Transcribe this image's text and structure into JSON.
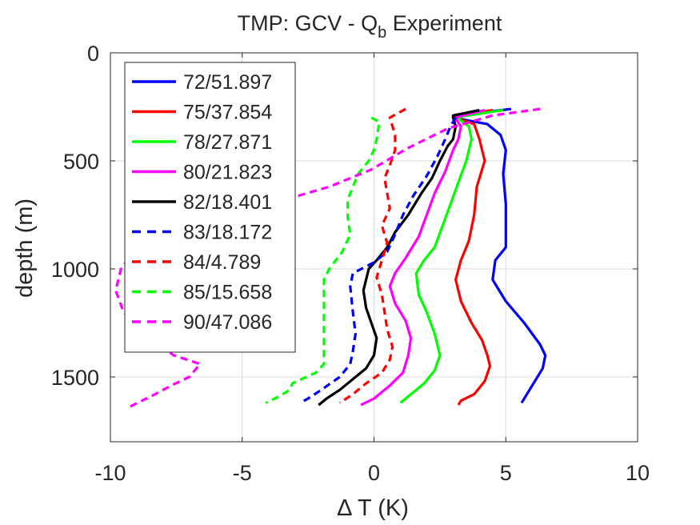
{
  "chart_data": {
    "type": "line",
    "title": "TMP: GCV - Q",
    "title_subscript": "b",
    "title_suffix": " Experiment",
    "xlabel": "Δ T (K)",
    "ylabel": "depth (m)",
    "xlim": [
      -10,
      10
    ],
    "ylim": [
      0,
      1800
    ],
    "y_reversed": true,
    "grid": true,
    "legend_position": "top-left",
    "xticks": [
      -10,
      -5,
      0,
      5,
      10
    ],
    "xtick_labels": [
      "-10",
      "-5",
      "0",
      "5",
      "10"
    ],
    "yticks": [
      0,
      500,
      1000,
      1500
    ],
    "ytick_labels": [
      "0",
      "500",
      "1000",
      "1500"
    ],
    "series": [
      {
        "name": "72/51.897",
        "color": "#0000ff",
        "style": "solid",
        "points": [
          [
            5.2,
            260
          ],
          [
            3.1,
            290
          ],
          [
            3.0,
            300
          ],
          [
            4.3,
            330
          ],
          [
            4.8,
            380
          ],
          [
            5.0,
            450
          ],
          [
            4.9,
            560
          ],
          [
            5.0,
            700
          ],
          [
            5.0,
            800
          ],
          [
            5.0,
            900
          ],
          [
            4.6,
            960
          ],
          [
            4.5,
            1050
          ],
          [
            5.0,
            1150
          ],
          [
            5.7,
            1250
          ],
          [
            6.3,
            1350
          ],
          [
            6.5,
            1400
          ],
          [
            6.4,
            1460
          ],
          [
            6.1,
            1520
          ],
          [
            5.8,
            1580
          ],
          [
            5.6,
            1620
          ]
        ]
      },
      {
        "name": "75/37.854",
        "color": "#ff0000",
        "style": "solid",
        "points": [
          [
            4.5,
            265
          ],
          [
            3.2,
            290
          ],
          [
            3.1,
            300
          ],
          [
            3.8,
            330
          ],
          [
            4.0,
            400
          ],
          [
            4.2,
            500
          ],
          [
            3.9,
            620
          ],
          [
            3.8,
            750
          ],
          [
            3.6,
            870
          ],
          [
            3.3,
            960
          ],
          [
            3.1,
            1050
          ],
          [
            3.3,
            1150
          ],
          [
            3.7,
            1250
          ],
          [
            4.1,
            1330
          ],
          [
            4.3,
            1400
          ],
          [
            4.4,
            1450
          ],
          [
            4.2,
            1520
          ],
          [
            3.8,
            1580
          ],
          [
            3.3,
            1610
          ],
          [
            3.2,
            1630
          ]
        ]
      },
      {
        "name": "78/27.871",
        "color": "#00ff00",
        "style": "solid",
        "points": [
          [
            4.9,
            265
          ],
          [
            3.3,
            295
          ],
          [
            3.2,
            305
          ],
          [
            3.6,
            340
          ],
          [
            3.7,
            400
          ],
          [
            3.5,
            500
          ],
          [
            3.2,
            600
          ],
          [
            2.9,
            700
          ],
          [
            2.6,
            800
          ],
          [
            2.3,
            900
          ],
          [
            1.9,
            960
          ],
          [
            1.6,
            1020
          ],
          [
            1.7,
            1120
          ],
          [
            2.0,
            1200
          ],
          [
            2.3,
            1300
          ],
          [
            2.5,
            1400
          ],
          [
            2.3,
            1470
          ],
          [
            1.9,
            1530
          ],
          [
            1.4,
            1580
          ],
          [
            1.0,
            1620
          ]
        ]
      },
      {
        "name": "80/21.823",
        "color": "#ff00ff",
        "style": "solid",
        "points": [
          [
            4.2,
            265
          ],
          [
            3.2,
            295
          ],
          [
            3.1,
            305
          ],
          [
            3.3,
            340
          ],
          [
            3.2,
            400
          ],
          [
            3.0,
            450
          ],
          [
            2.7,
            550
          ],
          [
            2.3,
            650
          ],
          [
            2.0,
            750
          ],
          [
            1.7,
            850
          ],
          [
            1.2,
            950
          ],
          [
            0.8,
            1020
          ],
          [
            0.6,
            1080
          ],
          [
            0.8,
            1160
          ],
          [
            1.2,
            1240
          ],
          [
            1.4,
            1320
          ],
          [
            1.3,
            1400
          ],
          [
            1.1,
            1480
          ],
          [
            0.6,
            1540
          ],
          [
            0.0,
            1600
          ],
          [
            -0.5,
            1630
          ]
        ]
      },
      {
        "name": "82/18.401",
        "color": "#000000",
        "style": "solid",
        "points": [
          [
            4.0,
            265
          ],
          [
            3.0,
            290
          ],
          [
            3.0,
            300
          ],
          [
            3.1,
            340
          ],
          [
            3.0,
            400
          ],
          [
            2.8,
            430
          ],
          [
            2.5,
            500
          ],
          [
            2.2,
            580
          ],
          [
            1.8,
            650
          ],
          [
            1.3,
            750
          ],
          [
            0.8,
            830
          ],
          [
            0.5,
            900
          ],
          [
            0.1,
            960
          ],
          [
            -0.2,
            1000
          ],
          [
            -0.3,
            1050
          ],
          [
            -0.4,
            1100
          ],
          [
            -0.3,
            1180
          ],
          [
            -0.1,
            1250
          ],
          [
            0.1,
            1320
          ],
          [
            0.0,
            1400
          ],
          [
            -0.3,
            1460
          ],
          [
            -0.8,
            1510
          ],
          [
            -1.3,
            1560
          ],
          [
            -1.8,
            1600
          ],
          [
            -2.1,
            1630
          ]
        ]
      },
      {
        "name": "83/18.172",
        "color": "#0000ff",
        "style": "dashed",
        "points": [
          [
            3.1,
            300
          ],
          [
            2.9,
            340
          ],
          [
            2.7,
            400
          ],
          [
            2.4,
            480
          ],
          [
            2.0,
            570
          ],
          [
            1.5,
            660
          ],
          [
            1.1,
            750
          ],
          [
            0.8,
            840
          ],
          [
            0.5,
            920
          ],
          [
            0.0,
            970
          ],
          [
            -0.8,
            1020
          ],
          [
            -0.9,
            1080
          ],
          [
            -0.8,
            1200
          ],
          [
            -0.7,
            1300
          ],
          [
            -0.8,
            1380
          ],
          [
            -0.9,
            1440
          ],
          [
            -1.3,
            1500
          ],
          [
            -2.0,
            1560
          ],
          [
            -2.5,
            1600
          ],
          [
            -2.8,
            1620
          ]
        ]
      },
      {
        "name": "84/4.789",
        "color": "#ff0000",
        "style": "dashed",
        "points": [
          [
            1.2,
            260
          ],
          [
            0.6,
            300
          ],
          [
            0.8,
            380
          ],
          [
            0.8,
            450
          ],
          [
            0.6,
            520
          ],
          [
            0.4,
            580
          ],
          [
            0.5,
            650
          ],
          [
            0.6,
            720
          ],
          [
            0.3,
            800
          ],
          [
            0.5,
            880
          ],
          [
            0.3,
            960
          ],
          [
            0.1,
            1040
          ],
          [
            0.3,
            1120
          ],
          [
            0.4,
            1200
          ],
          [
            0.5,
            1280
          ],
          [
            0.7,
            1360
          ],
          [
            0.6,
            1420
          ],
          [
            0.3,
            1480
          ],
          [
            -0.3,
            1530
          ],
          [
            -0.8,
            1580
          ],
          [
            -1.3,
            1620
          ]
        ]
      },
      {
        "name": "85/15.658",
        "color": "#00ff00",
        "style": "dashed",
        "points": [
          [
            -0.1,
            300
          ],
          [
            0.2,
            320
          ],
          [
            0.1,
            400
          ],
          [
            0.0,
            450
          ],
          [
            -0.2,
            500
          ],
          [
            -0.6,
            560
          ],
          [
            -0.8,
            620
          ],
          [
            -1.0,
            680
          ],
          [
            -1.0,
            760
          ],
          [
            -0.9,
            840
          ],
          [
            -1.2,
            920
          ],
          [
            -1.7,
            1000
          ],
          [
            -1.9,
            1050
          ],
          [
            -1.9,
            1150
          ],
          [
            -1.9,
            1250
          ],
          [
            -1.9,
            1350
          ],
          [
            -1.9,
            1400
          ],
          [
            -1.9,
            1440
          ],
          [
            -2.2,
            1480
          ],
          [
            -3.1,
            1530
          ],
          [
            -3.2,
            1560
          ],
          [
            -3.6,
            1590
          ],
          [
            -4.1,
            1620
          ]
        ]
      },
      {
        "name": "90/47.086",
        "color": "#ff00ff",
        "style": "dashed",
        "points": [
          [
            6.3,
            260
          ],
          [
            4.5,
            290
          ],
          [
            2.8,
            350
          ],
          [
            1.3,
            440
          ],
          [
            -0.1,
            540
          ],
          [
            -1.7,
            620
          ],
          [
            -3.4,
            680
          ],
          [
            -5.4,
            740
          ],
          [
            -6.8,
            780
          ],
          [
            -7.8,
            810
          ],
          [
            -8.2,
            830
          ],
          [
            -8.7,
            870
          ],
          [
            -9.0,
            900
          ],
          [
            -9.3,
            950
          ],
          [
            -9.6,
            1000
          ],
          [
            -9.8,
            1100
          ],
          [
            -9.5,
            1200
          ],
          [
            -8.7,
            1300
          ],
          [
            -7.6,
            1400
          ],
          [
            -6.6,
            1440
          ],
          [
            -7.0,
            1500
          ],
          [
            -7.7,
            1540
          ],
          [
            -8.3,
            1580
          ],
          [
            -8.8,
            1610
          ],
          [
            -9.3,
            1640
          ]
        ]
      }
    ]
  }
}
